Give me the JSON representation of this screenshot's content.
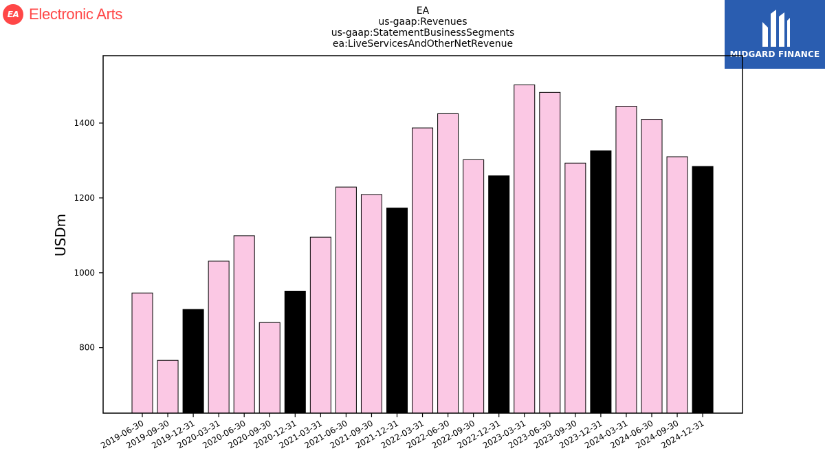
{
  "header": {
    "company_logo": {
      "badge": "EA",
      "name": "Electronic Arts",
      "color": "#ff4747"
    },
    "brand_logo": {
      "name": "MIDGARD FINANCE",
      "color": "#2a5db0"
    }
  },
  "chart_data": {
    "type": "bar",
    "title": [
      "EA",
      "us-gaap:Revenues",
      "us-gaap:StatementBusinessSegments",
      "ea:LiveServicesAndOtherNetRevenue"
    ],
    "xlabel": "",
    "ylabel": "USDm",
    "ylim": [
      625,
      1580
    ],
    "yticks": [
      800,
      1000,
      1200,
      1400
    ],
    "grid": false,
    "categories": [
      "2019-06-30",
      "2019-09-30",
      "2019-12-31",
      "2020-03-31",
      "2020-06-30",
      "2020-09-30",
      "2020-12-31",
      "2021-03-31",
      "2021-06-30",
      "2021-09-30",
      "2021-12-31",
      "2022-03-31",
      "2022-06-30",
      "2022-09-30",
      "2022-12-31",
      "2023-03-31",
      "2023-06-30",
      "2023-09-30",
      "2023-12-31",
      "2024-03-31",
      "2024-06-30",
      "2024-09-30",
      "2024-12-31"
    ],
    "values": [
      946,
      766,
      902,
      1031,
      1099,
      867,
      951,
      1095,
      1229,
      1209,
      1173,
      1387,
      1425,
      1302,
      1259,
      1502,
      1482,
      1293,
      1326,
      1445,
      1410,
      1310,
      1284
    ],
    "bar_colors": {
      "default": "#fbc8e4",
      "q4": "#000000",
      "edge": "#000000"
    }
  }
}
